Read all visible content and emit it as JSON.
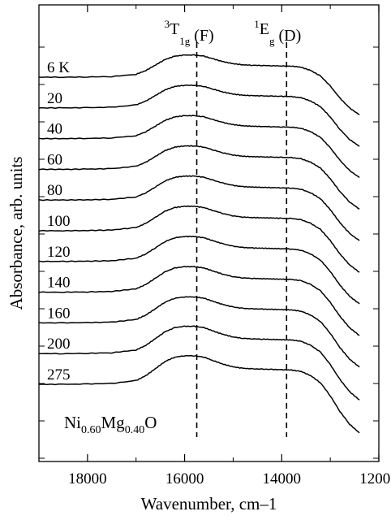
{
  "chart_data": {
    "type": "line",
    "title": "",
    "xlabel": "Wavenumber, cm–1",
    "ylabel": "Absorbance, arb. units",
    "xlim": [
      19000,
      12000
    ],
    "x_reversed": true,
    "x_ticks": [
      18000,
      16000,
      14000,
      12000
    ],
    "x_tick_labels": [
      "18000",
      "16000",
      "14000",
      "12000"
    ],
    "grid": false,
    "legend": "none",
    "line_color": "#000000",
    "sample_label": {
      "parts": [
        {
          "text": "Ni",
          "sub": false
        },
        {
          "text": "0.60",
          "sub": true
        },
        {
          "text": "Mg",
          "sub": false
        },
        {
          "text": "0.40",
          "sub": true
        },
        {
          "text": "O",
          "sub": false
        }
      ]
    },
    "peak_annotations": [
      {
        "position_wavenumber": 15750,
        "parts": [
          {
            "text": "3",
            "style": "sup"
          },
          {
            "text": "T",
            "style": "normal"
          },
          {
            "text": "1g",
            "style": "sub"
          },
          {
            "text": " (F)",
            "style": "normal"
          }
        ]
      },
      {
        "position_wavenumber": 13900,
        "parts": [
          {
            "text": "1",
            "style": "sup"
          },
          {
            "text": "E",
            "style": "normal"
          },
          {
            "text": "g",
            "style": "sub"
          },
          {
            "text": " (D)",
            "style": "normal"
          }
        ]
      }
    ],
    "series": [
      {
        "name": "6 K",
        "offset": 10.0,
        "amp": 0.85
      },
      {
        "name": "20",
        "offset": 9.0,
        "amp": 0.87
      },
      {
        "name": "40",
        "offset": 8.0,
        "amp": 0.88
      },
      {
        "name": "60",
        "offset": 7.0,
        "amp": 0.9
      },
      {
        "name": "80",
        "offset": 6.0,
        "amp": 0.92
      },
      {
        "name": "100",
        "offset": 5.0,
        "amp": 0.94
      },
      {
        "name": "120",
        "offset": 4.0,
        "amp": 0.96
      },
      {
        "name": "140",
        "offset": 3.0,
        "amp": 0.98
      },
      {
        "name": "160",
        "offset": 2.0,
        "amp": 1.0
      },
      {
        "name": "200",
        "offset": 1.0,
        "amp": 1.05
      },
      {
        "name": "275",
        "offset": 0.0,
        "amp": 1.1
      }
    ],
    "x": [
      19000,
      18500,
      18000,
      17500,
      17000,
      16800,
      16600,
      16400,
      16200,
      16000,
      15800,
      15600,
      15400,
      15200,
      15000,
      14800,
      14600,
      14400,
      14200,
      14000,
      13800,
      13600,
      13400,
      13200,
      13000,
      12800,
      12600,
      12400
    ],
    "shape": [
      0,
      0,
      0.01,
      0.03,
      0.13,
      0.3,
      0.55,
      0.8,
      0.95,
      1.0,
      1.0,
      0.95,
      0.82,
      0.7,
      0.61,
      0.56,
      0.54,
      0.53,
      0.52,
      0.51,
      0.5,
      0.45,
      0.3,
      0.05,
      -0.4,
      -0.95,
      -1.4,
      -1.7
    ]
  }
}
